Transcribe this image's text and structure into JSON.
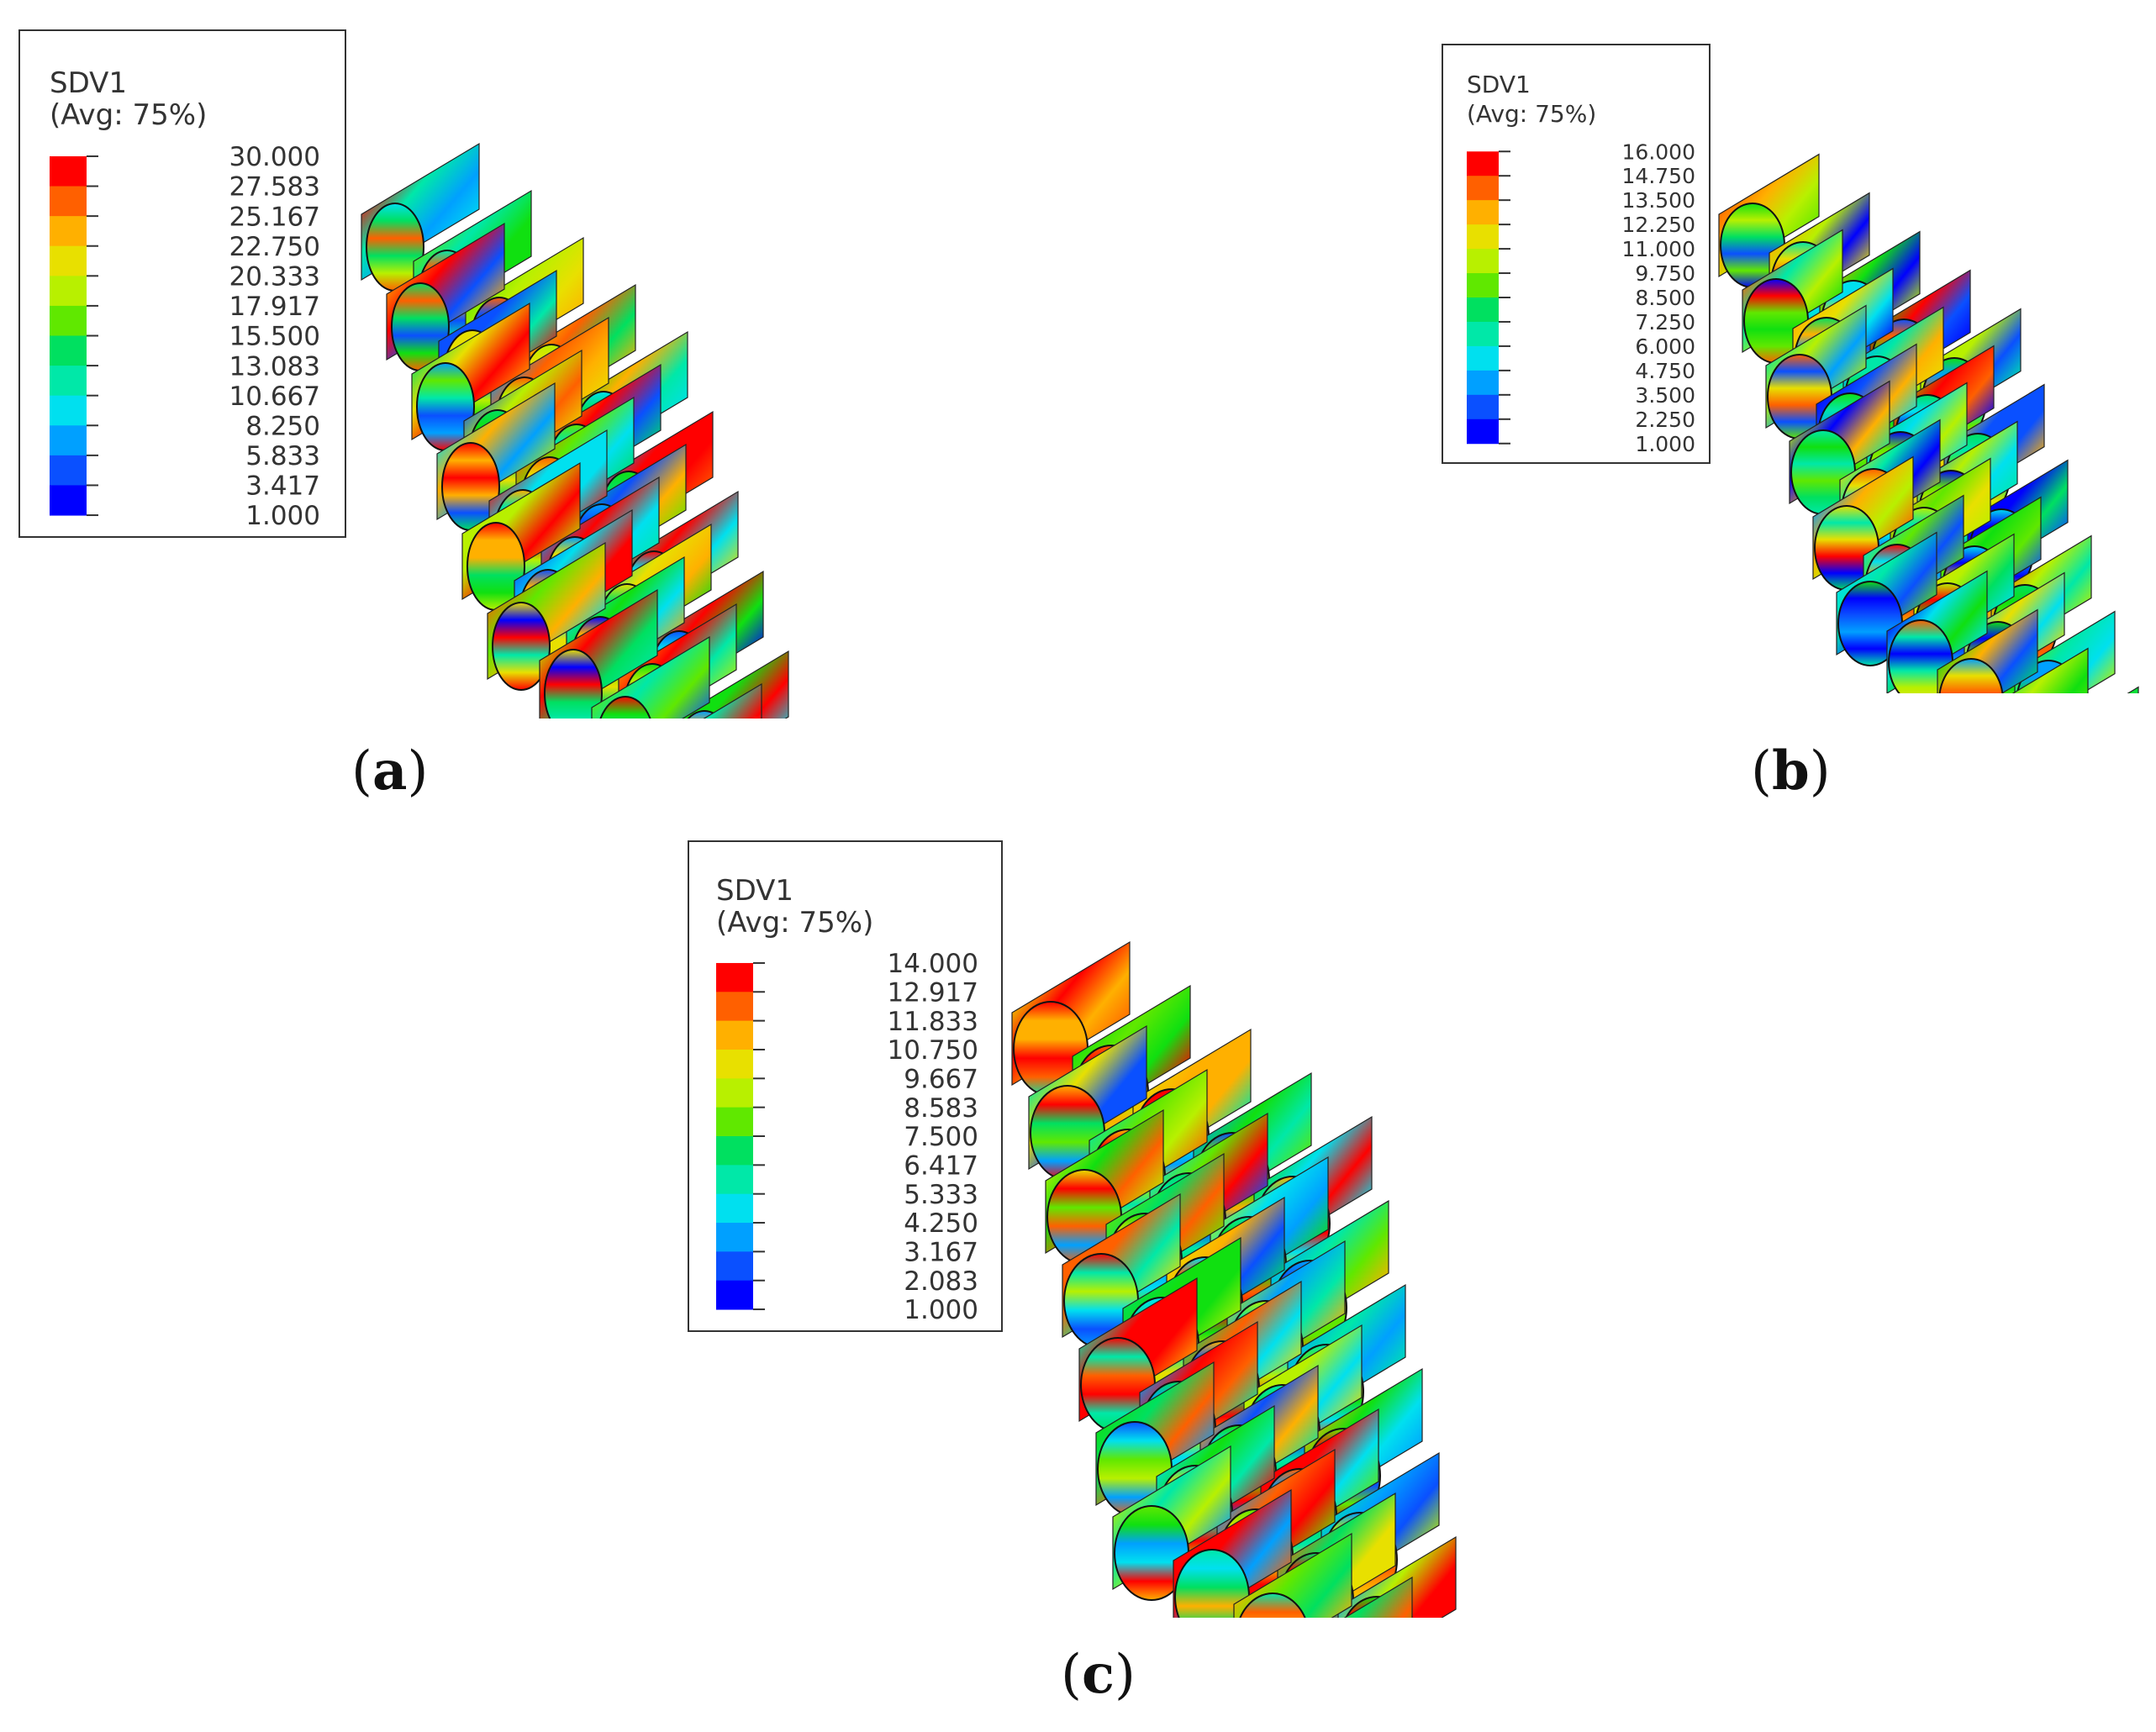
{
  "colors": {
    "scale13": [
      "#0000ff",
      "#0a50ff",
      "#00a0ff",
      "#00e0ef",
      "#00e8a8",
      "#00e060",
      "#10e010",
      "#60e800",
      "#b8f000",
      "#e8e000",
      "#ffb000",
      "#ff6000",
      "#ff0000"
    ],
    "frame": "#333333",
    "background": "#ffffff"
  },
  "panels": [
    {
      "id": "a",
      "legend_title": "SDV1",
      "legend_subtitle": "(Avg: 75%)",
      "legend_values": [
        "30.000",
        "27.583",
        "25.167",
        "22.750",
        "20.333",
        "17.917",
        "15.500",
        "13.083",
        "10.667",
        "8.250",
        "5.833",
        "3.417",
        "1.000"
      ],
      "label_open": "(",
      "label_letter": "a",
      "label_close": ")",
      "model_style": "thin-shell-tubes"
    },
    {
      "id": "b",
      "legend_title": "SDV1",
      "legend_subtitle": "(Avg: 75%)",
      "legend_values": [
        "16.000",
        "14.750",
        "13.500",
        "12.250",
        "11.000",
        "9.750",
        "8.500",
        "7.250",
        "6.000",
        "4.750",
        "3.500",
        "2.250",
        "1.000"
      ],
      "label_open": "(",
      "label_letter": "b",
      "label_close": ")",
      "model_style": "thick-block-holes"
    },
    {
      "id": "c",
      "legend_title": "SDV1",
      "legend_subtitle": "(Avg: 75%)",
      "legend_values": [
        "14.000",
        "12.917",
        "11.833",
        "10.750",
        "9.667",
        "8.583",
        "7.500",
        "6.417",
        "5.333",
        "4.250",
        "3.167",
        "2.083",
        "1.000"
      ],
      "label_open": "(",
      "label_letter": "c",
      "label_close": ")",
      "model_style": "solid-rods"
    }
  ]
}
